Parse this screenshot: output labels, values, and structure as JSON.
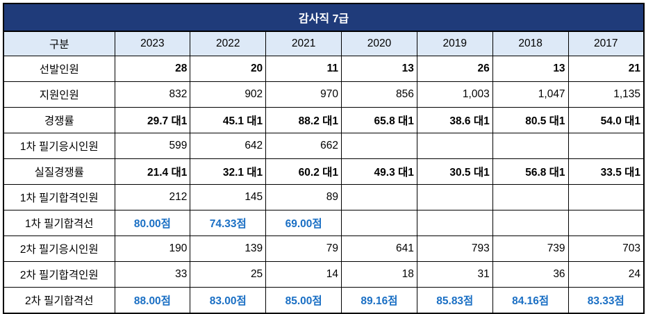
{
  "title": "감사직 7급",
  "header": {
    "label": "구분",
    "years": [
      "2023",
      "2022",
      "2021",
      "2020",
      "2019",
      "2018",
      "2017"
    ]
  },
  "rows": [
    {
      "label": "선발인원",
      "style": "bold",
      "values": [
        "28",
        "20",
        "11",
        "13",
        "26",
        "13",
        "21"
      ]
    },
    {
      "label": "지원인원",
      "style": "normal",
      "values": [
        "832",
        "902",
        "970",
        "856",
        "1,003",
        "1,047",
        "1,135"
      ]
    },
    {
      "label": "경쟁률",
      "style": "bold",
      "values": [
        "29.7 대1",
        "45.1 대1",
        "88.2 대1",
        "65.8 대1",
        "38.6 대1",
        "80.5 대1",
        "54.0 대1"
      ]
    },
    {
      "label": "1차 필기응시인원",
      "style": "normal",
      "values": [
        "599",
        "642",
        "662",
        "",
        "",
        "",
        ""
      ]
    },
    {
      "label": "실질경쟁률",
      "style": "bold",
      "values": [
        "21.4 대1",
        "32.1 대1",
        "60.2 대1",
        "49.3 대1",
        "30.5 대1",
        "56.8 대1",
        "33.5 대1"
      ]
    },
    {
      "label": "1차 필기합격인원",
      "style": "normal",
      "values": [
        "212",
        "145",
        "89",
        "",
        "",
        "",
        ""
      ]
    },
    {
      "label": "1차 필기합격선",
      "style": "blue",
      "values": [
        "80.00점",
        "74.33점",
        "69.00점",
        "",
        "",
        "",
        ""
      ]
    },
    {
      "label": "2차 필기응시인원",
      "style": "normal",
      "values": [
        "190",
        "139",
        "79",
        "641",
        "793",
        "739",
        "703"
      ]
    },
    {
      "label": "2차 필기합격인원",
      "style": "normal",
      "values": [
        "33",
        "25",
        "14",
        "18",
        "31",
        "36",
        "24"
      ]
    },
    {
      "label": "2차 필기합격선",
      "style": "blue",
      "values": [
        "88.00점",
        "83.00점",
        "85.00점",
        "89.16점",
        "85.83점",
        "84.16점",
        "83.33점"
      ]
    }
  ]
}
